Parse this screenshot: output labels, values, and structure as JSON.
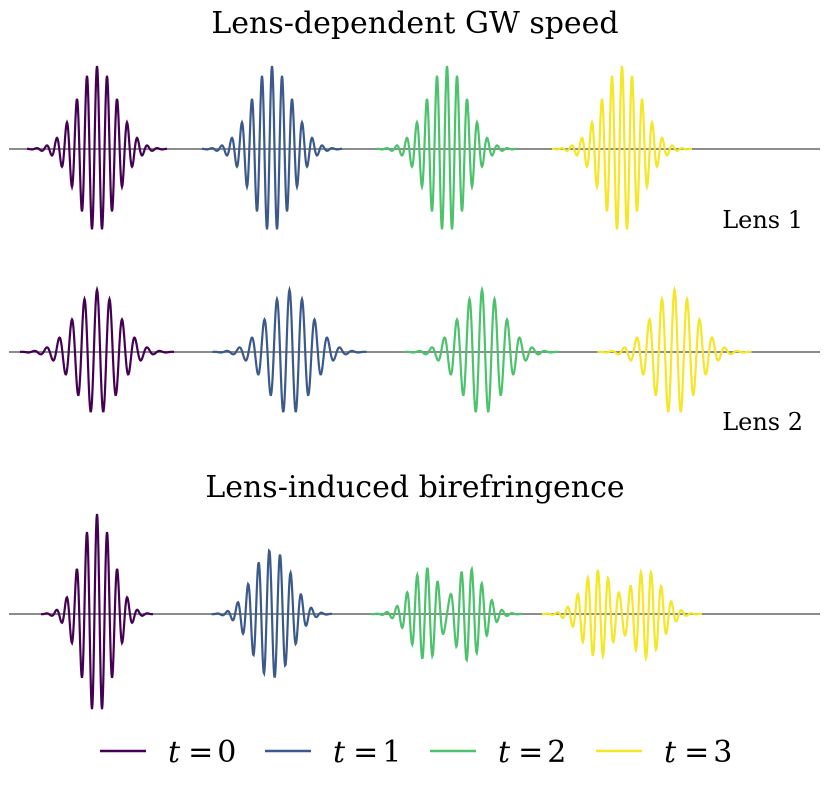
{
  "colors": {
    "t0": "#440154",
    "t1": "#3b5a8b",
    "t2": "#4cc26c",
    "t3": "#f5e626",
    "axis": "#8c8c8c"
  },
  "chart_data": [
    {
      "type": "line",
      "title": "Lens-dependent GW speed",
      "panel_label": "Lens 1",
      "legend_placement": "bottom",
      "series": [
        {
          "name": "t = 0",
          "center_x": 0.0,
          "amplitude": 1.0,
          "frequency": 1.0
        },
        {
          "name": "t = 1",
          "center_x": 2.0,
          "amplitude": 1.0,
          "frequency": 1.0
        },
        {
          "name": "t = 2",
          "center_x": 4.0,
          "amplitude": 1.0,
          "frequency": 1.0
        },
        {
          "name": "t = 3",
          "center_x": 6.0,
          "amplitude": 1.0,
          "frequency": 1.0
        }
      ]
    },
    {
      "type": "line",
      "title": "",
      "panel_label": "Lens 2",
      "series": [
        {
          "name": "t = 0",
          "center_x": 0.0,
          "amplitude": 0.75,
          "frequency": 0.8
        },
        {
          "name": "t = 1",
          "center_x": 2.2,
          "amplitude": 0.75,
          "frequency": 0.8
        },
        {
          "name": "t = 2",
          "center_x": 4.4,
          "amplitude": 0.75,
          "frequency": 0.8
        },
        {
          "name": "t = 3",
          "center_x": 6.6,
          "amplitude": 0.75,
          "frequency": 0.8
        }
      ]
    },
    {
      "type": "line",
      "title": "Lens-induced birefringence",
      "panel_label": "",
      "series": [
        {
          "name": "t = 0",
          "center_x": 0.0,
          "amplitude": 1.25,
          "split": 0.0
        },
        {
          "name": "t = 1",
          "center_x": 2.0,
          "amplitude": 1.0,
          "split": 0.1
        },
        {
          "name": "t = 2",
          "center_x": 4.0,
          "amplitude": 0.6,
          "split": 0.45
        },
        {
          "name": "t = 3",
          "center_x": 6.0,
          "amplitude": 0.55,
          "split": 0.55
        }
      ]
    }
  ],
  "legend": [
    {
      "var": "t",
      "eq": "=",
      "val": "0",
      "color_key": "t0"
    },
    {
      "var": "t",
      "eq": "=",
      "val": "1",
      "color_key": "t1"
    },
    {
      "var": "t",
      "eq": "=",
      "val": "2",
      "color_key": "t2"
    },
    {
      "var": "t",
      "eq": "=",
      "val": "3",
      "color_key": "t3"
    }
  ]
}
